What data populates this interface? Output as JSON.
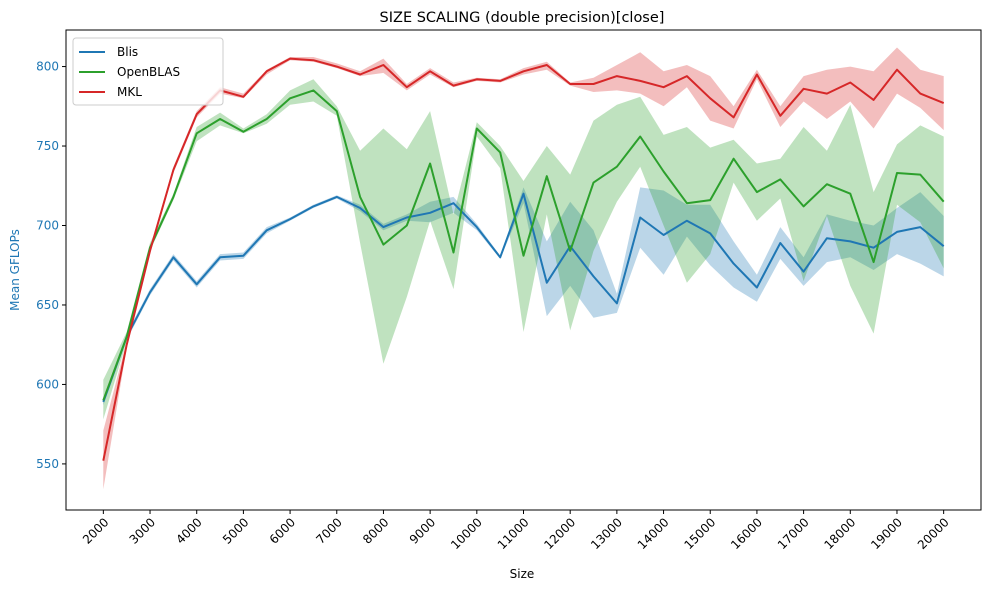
{
  "chart_data": {
    "type": "line",
    "title": "SIZE SCALING (double precision)[close]",
    "xlabel": "Size",
    "ylabel": "Mean GFLOPs",
    "xlim": [
      1200,
      20800
    ],
    "ylim": [
      521,
      823
    ],
    "xticks": [
      2000,
      3000,
      4000,
      5000,
      6000,
      7000,
      8000,
      9000,
      10000,
      11000,
      12000,
      13000,
      14000,
      15000,
      16000,
      17000,
      18000,
      19000,
      20000
    ],
    "yticks": [
      550,
      600,
      650,
      700,
      750,
      800
    ],
    "ylabel_color": "#1f77b4",
    "legend_position": "upper-left",
    "grid": false,
    "x": [
      2000,
      2500,
      3000,
      3500,
      4000,
      4500,
      5000,
      5500,
      6000,
      6500,
      7000,
      7500,
      8000,
      8500,
      9000,
      9500,
      10000,
      10500,
      11000,
      11500,
      12000,
      12500,
      13000,
      13500,
      14000,
      14500,
      15000,
      15500,
      16000,
      16500,
      17000,
      17500,
      18000,
      18500,
      19000,
      19500,
      20000
    ],
    "series": [
      {
        "name": "Blis",
        "color": "#1f77b4",
        "values": [
          589,
          630,
          658,
          680,
          663,
          680,
          681,
          697,
          704,
          712,
          718,
          711,
          699,
          705,
          708,
          714,
          699,
          680,
          720,
          664,
          687,
          668,
          651,
          705,
          694,
          703,
          695,
          676,
          661,
          689,
          671,
          692,
          690,
          686,
          696,
          699,
          687
        ],
        "lower": [
          587,
          628,
          656,
          678,
          661,
          678,
          679,
          695,
          703,
          711,
          717,
          709,
          697,
          703,
          702,
          708,
          697,
          679,
          714,
          643,
          662,
          642,
          645,
          686,
          669,
          693,
          675,
          661,
          652,
          679,
          662,
          677,
          680,
          672,
          682,
          676,
          668
        ],
        "upper": [
          591,
          632,
          660,
          682,
          665,
          682,
          683,
          699,
          705,
          713,
          719,
          713,
          701,
          707,
          715,
          718,
          701,
          681,
          724,
          690,
          715,
          697,
          657,
          724,
          722,
          713,
          713,
          690,
          669,
          699,
          680,
          707,
          703,
          700,
          711,
          721,
          706
        ]
      },
      {
        "name": "OpenBLAS",
        "color": "#2ca02c",
        "values": [
          590,
          630,
          686,
          718,
          758,
          767,
          759,
          767,
          780,
          785,
          772,
          718,
          688,
          700,
          739,
          683,
          761,
          746,
          681,
          731,
          684,
          727,
          737,
          756,
          734,
          714,
          716,
          742,
          721,
          729,
          712,
          726,
          720,
          677,
          733,
          732,
          715
        ],
        "lower": [
          578,
          627,
          684,
          716,
          753,
          763,
          758,
          764,
          776,
          778,
          769,
          689,
          613,
          655,
          703,
          660,
          756,
          736,
          633,
          707,
          634,
          684,
          715,
          737,
          700,
          664,
          682,
          727,
          703,
          717,
          665,
          706,
          662,
          632,
          713,
          702,
          673
        ],
        "upper": [
          603,
          633,
          689,
          720,
          762,
          771,
          761,
          770,
          785,
          792,
          775,
          747,
          761,
          748,
          772,
          707,
          765,
          750,
          728,
          750,
          732,
          766,
          776,
          781,
          757,
          762,
          749,
          754,
          739,
          742,
          762,
          747,
          776,
          721,
          751,
          763,
          756
        ]
      },
      {
        "name": "MKL",
        "color": "#d62728",
        "values": [
          552,
          625,
          684,
          735,
          770,
          785,
          781,
          797,
          805,
          804,
          800,
          795,
          801,
          787,
          797,
          788,
          792,
          791,
          797,
          801,
          789,
          789,
          794,
          791,
          787,
          794,
          780,
          768,
          795,
          769,
          786,
          783,
          790,
          779,
          798,
          783,
          777
        ],
        "lower": [
          534,
          623,
          682,
          733,
          768,
          783,
          780,
          795,
          804,
          803,
          799,
          794,
          796,
          785,
          795,
          787,
          791,
          790,
          795,
          798,
          788,
          784,
          785,
          783,
          775,
          787,
          766,
          761,
          792,
          762,
          778,
          767,
          778,
          761,
          783,
          774,
          760
        ],
        "upper": [
          571,
          627,
          686,
          737,
          772,
          787,
          783,
          798,
          806,
          806,
          802,
          797,
          805,
          789,
          799,
          790,
          793,
          792,
          799,
          803,
          790,
          793,
          801,
          809,
          797,
          801,
          794,
          775,
          798,
          775,
          794,
          798,
          800,
          797,
          812,
          798,
          794
        ]
      }
    ]
  }
}
